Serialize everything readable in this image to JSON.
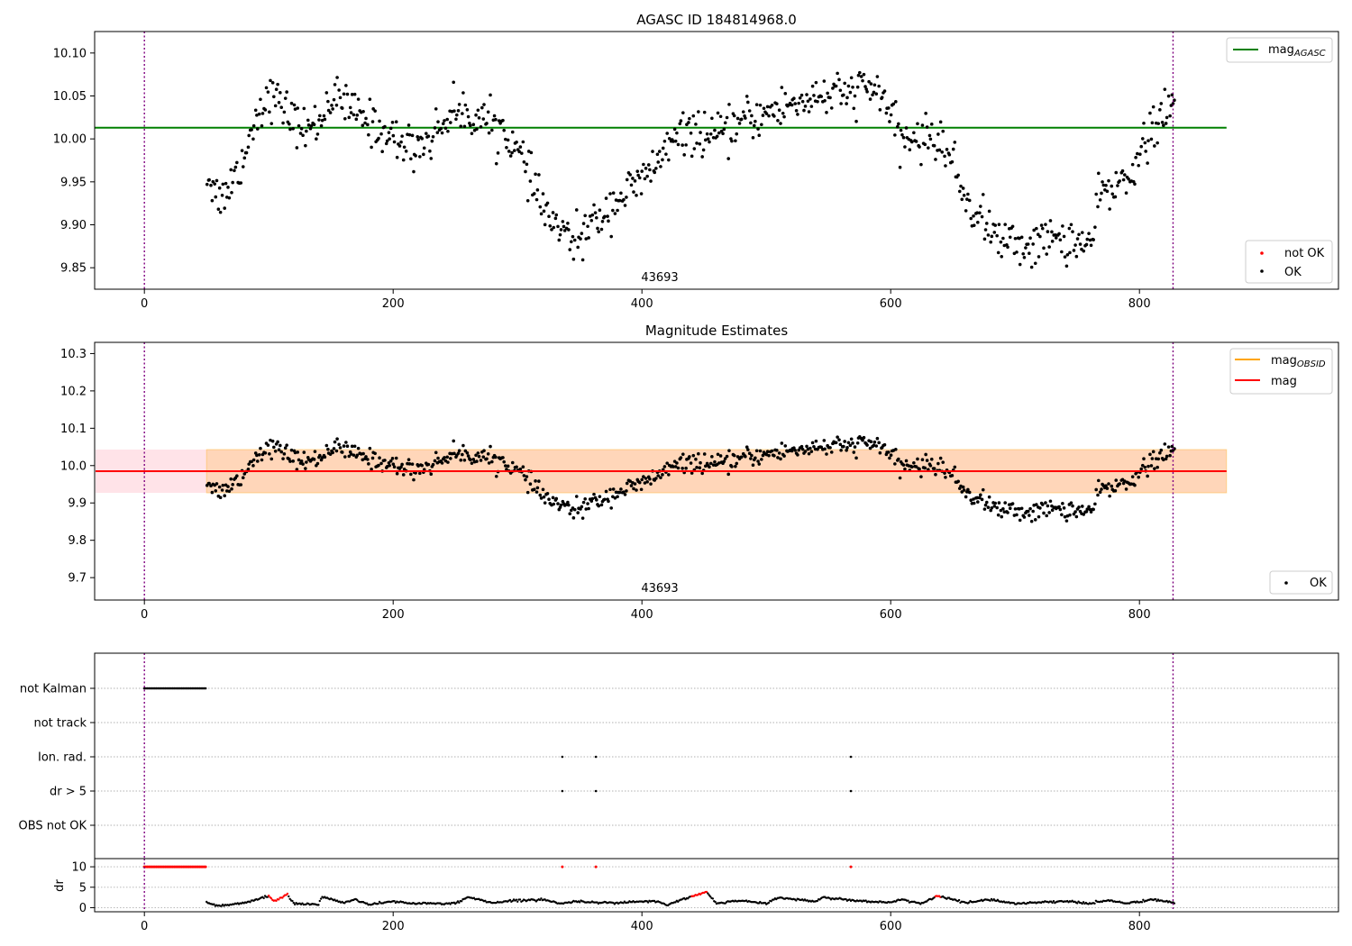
{
  "chart_data": [
    {
      "type": "scatter",
      "title": "AGASC ID 184814968.0",
      "xlim": [
        -40,
        960
      ],
      "ylim": [
        9.825,
        10.125
      ],
      "xticks": [
        0,
        200,
        400,
        600,
        800
      ],
      "yticks": [
        9.85,
        9.9,
        9.95,
        10.0,
        10.05,
        10.1
      ],
      "ytick_labels": [
        "9.85",
        "9.90",
        "9.95",
        "10.00",
        "10.05",
        "10.10"
      ],
      "vlines": [
        0,
        827
      ],
      "hline": {
        "label": "mag",
        "subscript": "AGASC",
        "y": 10.013,
        "x_range": [
          -40,
          870
        ],
        "color": "#008000"
      },
      "annotation": {
        "text": "43693",
        "x": 413
      },
      "series": [
        {
          "name": "not OK",
          "color": "#ff0000",
          "values": []
        },
        {
          "name": "OK",
          "color": "#000000",
          "x_range": [
            50,
            828
          ],
          "control_points": [
            [
              50,
              9.96
            ],
            [
              60,
              9.93
            ],
            [
              70,
              9.95
            ],
            [
              80,
              9.98
            ],
            [
              90,
              10.03
            ],
            [
              100,
              10.05
            ],
            [
              110,
              10.04
            ],
            [
              120,
              10.02
            ],
            [
              130,
              10.01
            ],
            [
              140,
              10.02
            ],
            [
              150,
              10.05
            ],
            [
              160,
              10.04
            ],
            [
              170,
              10.03
            ],
            [
              180,
              10.02
            ],
            [
              190,
              10.01
            ],
            [
              200,
              10.0
            ],
            [
              215,
              9.99
            ],
            [
              230,
              10.0
            ],
            [
              245,
              10.03
            ],
            [
              260,
              10.03
            ],
            [
              275,
              10.02
            ],
            [
              290,
              10.01
            ],
            [
              305,
              9.97
            ],
            [
              320,
              9.92
            ],
            [
              335,
              9.89
            ],
            [
              345,
              9.88
            ],
            [
              360,
              9.9
            ],
            [
              380,
              9.93
            ],
            [
              400,
              9.95
            ],
            [
              420,
              9.99
            ],
            [
              440,
              10.01
            ],
            [
              460,
              10.0
            ],
            [
              480,
              10.02
            ],
            [
              500,
              10.03
            ],
            [
              520,
              10.04
            ],
            [
              540,
              10.05
            ],
            [
              560,
              10.05
            ],
            [
              580,
              10.06
            ],
            [
              595,
              10.05
            ],
            [
              605,
              10.0
            ],
            [
              620,
              10.0
            ],
            [
              640,
              10.0
            ],
            [
              650,
              9.97
            ],
            [
              660,
              9.93
            ],
            [
              670,
              9.91
            ],
            [
              690,
              9.88
            ],
            [
              710,
              9.875
            ],
            [
              730,
              9.885
            ],
            [
              750,
              9.88
            ],
            [
              760,
              9.875
            ],
            [
              770,
              9.94
            ],
            [
              780,
              9.94
            ],
            [
              790,
              9.96
            ],
            [
              800,
              9.98
            ],
            [
              810,
              10.01
            ],
            [
              820,
              10.03
            ],
            [
              828,
              10.04
            ]
          ]
        }
      ],
      "legend": [
        {
          "label": "mag",
          "subscript": "AGASC",
          "kind": "line",
          "color": "#008000"
        },
        {
          "label": "not OK",
          "kind": "dot",
          "color": "#ff0000"
        },
        {
          "label": "OK",
          "kind": "dot",
          "color": "#000000"
        }
      ]
    },
    {
      "type": "scatter",
      "title": "Magnitude Estimates",
      "xlim": [
        -40,
        960
      ],
      "ylim": [
        9.64,
        10.33
      ],
      "xticks": [
        0,
        200,
        400,
        600,
        800
      ],
      "yticks": [
        9.7,
        9.8,
        9.9,
        10.0,
        10.1,
        10.2,
        10.3
      ],
      "ytick_labels": [
        "9.7",
        "9.8",
        "9.9",
        "10.0",
        "10.1",
        "10.2",
        "10.3"
      ],
      "vlines": [
        0,
        827
      ],
      "mag_line": {
        "y": 9.985,
        "x_range": [
          -40,
          870
        ],
        "color": "#ff0000"
      },
      "mag_obsid_line": {
        "y": 9.985,
        "x_range": [
          50,
          828
        ],
        "color": "#ffa500"
      },
      "band_mag": {
        "y_range": [
          9.927,
          10.043
        ],
        "x_range": [
          -40,
          870
        ],
        "color": "#ffc0cb"
      },
      "band_obsid": {
        "y_range": [
          9.927,
          10.043
        ],
        "x_range": [
          50,
          870
        ],
        "color": "#ffa500"
      },
      "annotation": {
        "text": "43693",
        "x": 413
      },
      "legend": [
        {
          "label": "mag",
          "subscript": "OBSID",
          "kind": "line",
          "color": "#ffa500"
        },
        {
          "label": "mag",
          "kind": "line",
          "color": "#ff0000"
        },
        {
          "label": "OK",
          "kind": "dot",
          "color": "#000000"
        }
      ]
    },
    {
      "type": "scatter",
      "xlim": [
        -40,
        960
      ],
      "xticks": [
        0,
        200,
        400,
        600,
        800
      ],
      "vlines": [
        0,
        827
      ],
      "flag_rows": [
        "not Kalman",
        "not track",
        "Ion. rad.",
        "dr > 5",
        "OBS not OK"
      ],
      "flags": [
        {
          "row": "not Kalman",
          "x_range": [
            0,
            50
          ]
        },
        {
          "row": "Ion. rad.",
          "x": [
            336,
            363,
            568
          ]
        },
        {
          "row": "dr > 5",
          "x": [
            336,
            363,
            568
          ]
        }
      ],
      "dr": {
        "ylabel": "dr",
        "ylim": [
          -1,
          12
        ],
        "yticks": [
          0,
          5,
          10
        ],
        "ytick_labels": [
          "0",
          "5",
          "10"
        ],
        "saturated_red_x_range": [
          0,
          50
        ],
        "saturated_red_x": [
          336,
          363,
          568
        ],
        "saturated_value": 10,
        "control_points": [
          [
            50,
            1.2
          ],
          [
            60,
            0.4
          ],
          [
            70,
            0.8
          ],
          [
            80,
            1.2
          ],
          [
            90,
            2.0
          ],
          [
            100,
            2.8
          ],
          [
            104,
            1.6
          ],
          [
            110,
            2.4
          ],
          [
            115,
            3.2
          ],
          [
            120,
            1.0
          ],
          [
            140,
            0.8
          ],
          [
            143,
            2.7
          ],
          [
            160,
            1.2
          ],
          [
            170,
            2.0
          ],
          [
            180,
            0.8
          ],
          [
            200,
            1.5
          ],
          [
            220,
            1.0
          ],
          [
            250,
            1.0
          ],
          [
            260,
            2.6
          ],
          [
            280,
            1.2
          ],
          [
            300,
            1.8
          ],
          [
            320,
            2.0
          ],
          [
            335,
            1.0
          ],
          [
            345,
            1.5
          ],
          [
            380,
            1.2
          ],
          [
            410,
            1.6
          ],
          [
            420,
            0.6
          ],
          [
            430,
            1.8
          ],
          [
            452,
            3.8
          ],
          [
            460,
            1.0
          ],
          [
            480,
            1.8
          ],
          [
            500,
            1.0
          ],
          [
            510,
            2.5
          ],
          [
            540,
            1.5
          ],
          [
            545,
            2.5
          ],
          [
            570,
            1.8
          ],
          [
            600,
            1.2
          ],
          [
            610,
            2.0
          ],
          [
            625,
            1.0
          ],
          [
            638,
            2.9
          ],
          [
            660,
            1.2
          ],
          [
            680,
            2.0
          ],
          [
            700,
            1.0
          ],
          [
            740,
            1.6
          ],
          [
            760,
            1.0
          ],
          [
            775,
            1.8
          ],
          [
            790,
            1.0
          ],
          [
            810,
            2.0
          ],
          [
            828,
            1.2
          ]
        ]
      }
    }
  ]
}
